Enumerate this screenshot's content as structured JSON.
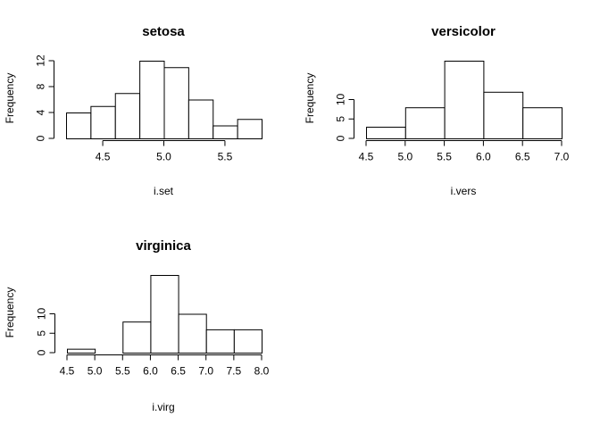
{
  "chart_data": [
    {
      "type": "bar",
      "title": "setosa",
      "xlabel": "i.set",
      "ylabel": "Frequency",
      "bin_edges": [
        4.2,
        4.4,
        4.6,
        4.8,
        5.0,
        5.2,
        5.4,
        5.6,
        5.8
      ],
      "values": [
        4,
        5,
        7,
        12,
        11,
        6,
        2,
        3
      ],
      "x_ticks": [
        4.5,
        5.0,
        5.5
      ],
      "x_tick_labels": [
        "4.5",
        "5.0",
        "5.5"
      ],
      "y_ticks": [
        0,
        4,
        8,
        12
      ],
      "y_tick_labels": [
        "0",
        "4",
        "8",
        "12"
      ],
      "xlim": [
        4.2,
        5.8
      ],
      "ylim": [
        0,
        12
      ]
    },
    {
      "type": "bar",
      "title": "versicolor",
      "xlabel": "i.vers",
      "ylabel": "Frequency",
      "bin_edges": [
        4.5,
        5.0,
        5.5,
        6.0,
        6.5,
        7.0
      ],
      "values": [
        3,
        8,
        20,
        12,
        8
      ],
      "x_ticks": [
        4.5,
        5.0,
        5.5,
        6.0,
        6.5,
        7.0
      ],
      "x_tick_labels": [
        "4.5",
        "5.0",
        "5.5",
        "6.0",
        "6.5",
        "7.0"
      ],
      "y_ticks": [
        0,
        5,
        10
      ],
      "y_tick_labels": [
        "0",
        "5",
        "10"
      ],
      "xlim": [
        4.5,
        7.0
      ],
      "ylim": [
        0,
        20
      ]
    },
    {
      "type": "bar",
      "title": "virginica",
      "xlabel": "i.virg",
      "ylabel": "Frequency",
      "bin_edges": [
        4.5,
        5.0,
        5.5,
        6.0,
        6.5,
        7.0,
        7.5,
        8.0
      ],
      "values": [
        1,
        0,
        8,
        20,
        10,
        6,
        6
      ],
      "x_ticks": [
        4.5,
        5.0,
        5.5,
        6.0,
        6.5,
        7.0,
        7.5,
        8.0
      ],
      "x_tick_labels": [
        "4.5",
        "5.0",
        "5.5",
        "6.0",
        "6.5",
        "7.0",
        "7.5",
        "8.0"
      ],
      "y_ticks": [
        0,
        5,
        10
      ],
      "y_tick_labels": [
        "0",
        "5",
        "10"
      ],
      "xlim": [
        4.5,
        8.0
      ],
      "ylim": [
        0,
        20
      ]
    }
  ]
}
